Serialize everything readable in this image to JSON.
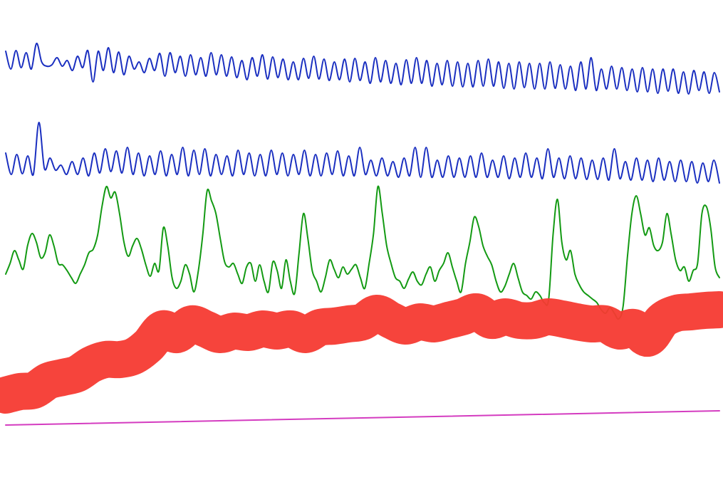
{
  "chart_data": [
    {
      "type": "line",
      "color": "#1a2fc0",
      "ylim": [
        0,
        677
      ],
      "values": [
        605,
        580,
        606,
        582,
        603,
        580,
        616,
        590,
        584,
        586,
        596,
        584,
        592,
        578,
        598,
        582,
        606,
        562,
        605,
        578,
        610,
        575,
        604,
        572,
        598,
        580,
        590,
        575,
        595,
        578,
        602,
        570,
        603,
        575,
        598,
        570,
        600,
        572,
        596,
        570,
        603,
        572,
        600,
        570,
        597,
        568,
        592,
        565,
        596,
        570,
        600,
        566,
        597,
        568,
        594,
        565,
        590,
        565,
        595,
        567,
        598,
        566,
        594,
        564,
        590,
        565,
        594,
        562,
        595,
        564,
        590,
        560,
        596,
        562,
        592,
        560,
        588,
        558,
        593,
        560,
        596,
        560,
        592,
        556,
        588,
        558,
        592,
        556,
        590,
        555,
        588,
        555,
        592,
        556,
        594,
        556,
        590,
        553,
        588,
        552,
        590,
        554,
        588,
        552,
        588,
        552,
        590,
        553,
        586,
        552,
        584,
        550,
        590,
        552,
        596,
        550,
        580,
        552,
        584,
        552,
        582,
        550,
        580,
        548,
        582,
        548,
        580,
        546,
        580,
        549,
        580,
        546,
        576,
        545,
        578,
        550,
        576,
        546,
        575,
        548
      ]
    },
    {
      "type": "line",
      "color": "#1a2fc0",
      "ylim": [
        0,
        677
      ],
      "values": [
        462,
        432,
        460,
        433,
        458,
        432,
        505,
        440,
        455,
        438,
        445,
        432,
        450,
        432,
        455,
        430,
        462,
        434,
        468,
        436,
        465,
        434,
        470,
        432,
        462,
        430,
        458,
        432,
        465,
        430,
        460,
        432,
        470,
        430,
        466,
        432,
        468,
        430,
        460,
        432,
        458,
        430,
        466,
        432,
        462,
        430,
        460,
        430,
        466,
        432,
        462,
        430,
        460,
        432,
        466,
        430,
        460,
        430,
        462,
        432,
        465,
        430,
        458,
        430,
        470,
        432,
        452,
        430,
        455,
        430,
        450,
        428,
        455,
        430,
        470,
        428,
        470,
        428,
        452,
        428,
        458,
        428,
        455,
        428,
        458,
        428,
        462,
        428,
        452,
        428,
        458,
        426,
        455,
        428,
        462,
        428,
        455,
        426,
        468,
        428,
        455,
        426,
        458,
        426,
        455,
        425,
        452,
        425,
        455,
        424,
        468,
        426,
        450,
        424,
        455,
        424,
        452,
        422,
        455,
        424,
        450,
        422,
        452,
        422,
        450,
        420,
        448,
        422,
        452,
        420
      ]
    },
    {
      "type": "line",
      "color": "#139a13",
      "ylim": [
        0,
        677
      ],
      "values": [
        292,
        307,
        325,
        312,
        299,
        332,
        349,
        337,
        315,
        322,
        347,
        332,
        307,
        305,
        297,
        287,
        279,
        292,
        305,
        322,
        327,
        347,
        387,
        415,
        399,
        407,
        377,
        337,
        317,
        332,
        342,
        327,
        305,
        289,
        307,
        297,
        357,
        332,
        287,
        272,
        282,
        305,
        292,
        267,
        297,
        347,
        409,
        395,
        377,
        342,
        309,
        302,
        307,
        292,
        279,
        302,
        307,
        282,
        305,
        282,
        267,
        309,
        297,
        272,
        312,
        282,
        265,
        322,
        377,
        342,
        297,
        282,
        267,
        287,
        312,
        299,
        287,
        302,
        292,
        299,
        305,
        287,
        272,
        307,
        349,
        415,
        377,
        332,
        307,
        287,
        282,
        272,
        285,
        295,
        282,
        277,
        292,
        302,
        282,
        297,
        307,
        322,
        302,
        282,
        267,
        307,
        337,
        372,
        359,
        332,
        317,
        305,
        282,
        267,
        275,
        292,
        307,
        287,
        267,
        262,
        257,
        267,
        262,
        252,
        257,
        347,
        397,
        337,
        312,
        325,
        292,
        277,
        267,
        262,
        257,
        252,
        242,
        237,
        245,
        237,
        229,
        247,
        317,
        377,
        402,
        377,
        347,
        357,
        332,
        325,
        337,
        377,
        347,
        312,
        297,
        302,
        282,
        297,
        307,
        377,
        387,
        357,
        302,
        287
      ]
    },
    {
      "type": "line",
      "color": "#f53a32",
      "ylim": [
        0,
        677
      ],
      "values": [
        122,
        127,
        129,
        142,
        147,
        152,
        165,
        172,
        172,
        177,
        192,
        215,
        207,
        222,
        215,
        207,
        212,
        210,
        215,
        212,
        215,
        207,
        217,
        219,
        222,
        225,
        237,
        227,
        219,
        225,
        222,
        227,
        232,
        239,
        227,
        232,
        227,
        227,
        232,
        229,
        225,
        222,
        222,
        212,
        217,
        202,
        227,
        237,
        239,
        241,
        242
      ]
    },
    {
      "type": "line",
      "color": "#d43cc0",
      "ylim": [
        0,
        677
      ],
      "values": [
        80,
        100
      ]
    }
  ]
}
